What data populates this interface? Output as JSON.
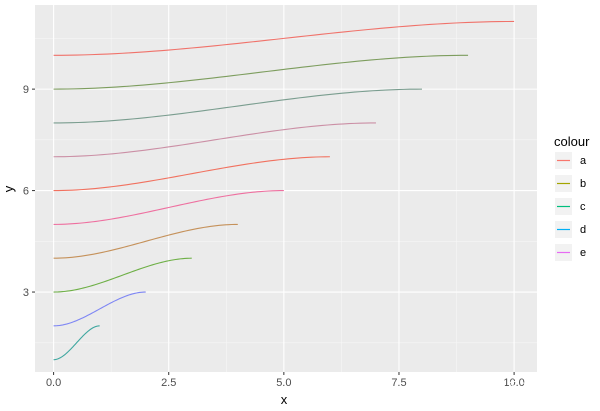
{
  "chart_data": {
    "type": "line",
    "title": "",
    "xlabel": "x",
    "ylabel": "y",
    "xlim": [
      0,
      10
    ],
    "ylim": [
      1,
      11
    ],
    "x_ticks": [
      0,
      2.5,
      5,
      7.5,
      10
    ],
    "x_tick_labels": [
      "0.0",
      "2.5",
      "5.0",
      "7.5",
      "10.0"
    ],
    "y_ticks": [
      3,
      6,
      9
    ],
    "y_tick_labels": [
      "3",
      "6",
      "9"
    ],
    "grid": true,
    "legend": {
      "title": "colour",
      "position": "right",
      "entries": [
        {
          "label": "a",
          "color": "#F8766D"
        },
        {
          "label": "b",
          "color": "#A3A500"
        },
        {
          "label": "c",
          "color": "#00BF7D"
        },
        {
          "label": "d",
          "color": "#00B0F6"
        },
        {
          "label": "e",
          "color": "#E76BF3"
        }
      ]
    },
    "curve_shape": "sigmoid",
    "series": [
      {
        "x_end": 1,
        "y_start": 1,
        "y_end": 2,
        "color": "#3FA7A0"
      },
      {
        "x_end": 2,
        "y_start": 2,
        "y_end": 3,
        "color": "#7E86F4"
      },
      {
        "x_end": 3,
        "y_start": 3,
        "y_end": 4,
        "color": "#6DAF45"
      },
      {
        "x_end": 4,
        "y_start": 4,
        "y_end": 5,
        "color": "#C5915A"
      },
      {
        "x_end": 5,
        "y_start": 5,
        "y_end": 6,
        "color": "#EE6F9F"
      },
      {
        "x_end": 6,
        "y_start": 6,
        "y_end": 7,
        "color": "#F1715F"
      },
      {
        "x_end": 7,
        "y_start": 7,
        "y_end": 8,
        "color": "#CB8FA5"
      },
      {
        "x_end": 8,
        "y_start": 8,
        "y_end": 9,
        "color": "#7A9D8F"
      },
      {
        "x_end": 9,
        "y_start": 9,
        "y_end": 10,
        "color": "#7D9D5E"
      },
      {
        "x_end": 10,
        "y_start": 10,
        "y_end": 11,
        "color": "#F0726A"
      }
    ]
  },
  "watermark": "知乎 @名本无名",
  "colors": {
    "panel_bg": "#EBEBEB",
    "grid_major": "#FFFFFF",
    "legend_key_bg": "#F2F2F2"
  }
}
